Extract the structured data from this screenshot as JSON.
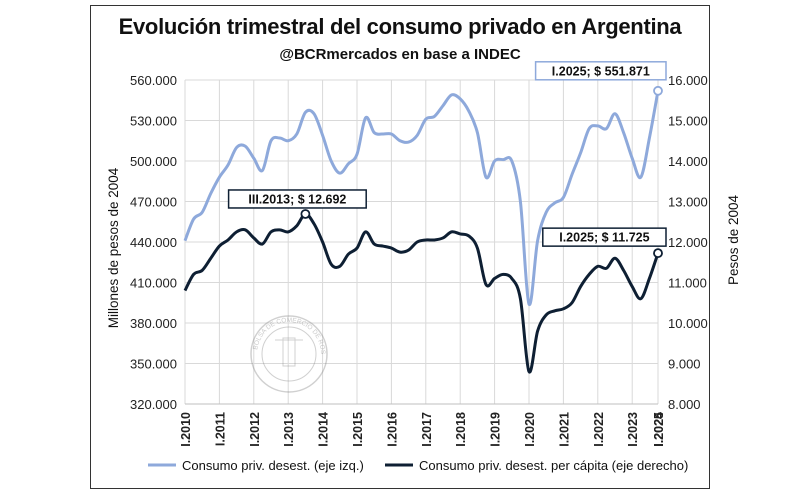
{
  "chart_data": {
    "type": "line",
    "title": "Evolución trimestral del consumo privado en Argentina",
    "subtitle": "@BCRmercados en base a INDEC",
    "ylabel_left": "Millones de pesos de 2004",
    "ylabel_right": "Pesos de 2004",
    "ylim_left": [
      320000,
      560000
    ],
    "ylim_right": [
      8000,
      16000
    ],
    "yticks_left": [
      "560.000",
      "530.000",
      "500.000",
      "470.000",
      "440.000",
      "410.000",
      "380.000",
      "350.000",
      "320.000"
    ],
    "yticks_right": [
      "16.000",
      "15.000",
      "14.000",
      "13.000",
      "12.000",
      "11.000",
      "10.000",
      "9.000",
      "8.000"
    ],
    "x_tick_labels": [
      "I.2010",
      "I.2011",
      "I.2012",
      "I.2013",
      "I.2014",
      "I.2015",
      "I.2016",
      "I.2017",
      "I.2018",
      "I.2019",
      "I.2020",
      "I.2021",
      "I.2022",
      "I.2023",
      "I.2024",
      "I.2025"
    ],
    "grid": true,
    "legend_position": "bottom",
    "series": [
      {
        "name": "Consumo priv. desest. (eje izq.)",
        "axis": "left",
        "color": "#8EA9DB",
        "values": [
          441000,
          457000,
          462000,
          476000,
          488000,
          497000,
          510000,
          511000,
          502000,
          493000,
          515000,
          517000,
          515000,
          520000,
          536000,
          535000,
          519000,
          500000,
          491000,
          498000,
          505000,
          532000,
          521000,
          520000,
          520000,
          515000,
          514000,
          519000,
          531000,
          533000,
          541000,
          549000,
          546000,
          537000,
          521000,
          488000,
          500000,
          501000,
          500000,
          470000,
          394000,
          441000,
          462000,
          469000,
          473000,
          490000,
          506000,
          524000,
          526000,
          524000,
          535000,
          521000,
          502000,
          488000,
          517000,
          552000
        ]
      },
      {
        "name": "Consumo priv. desest. per cápita (eje derecho)",
        "axis": "right",
        "color": "#0E1F33",
        "values": [
          10800,
          11200,
          11300,
          11600,
          11900,
          12050,
          12250,
          12300,
          12100,
          11950,
          12250,
          12300,
          12250,
          12400,
          12692,
          12450,
          12000,
          11450,
          11400,
          11700,
          11850,
          12250,
          11950,
          11900,
          11850,
          11750,
          11800,
          12000,
          12050,
          12050,
          12100,
          12250,
          12200,
          12150,
          11850,
          10950,
          11100,
          11200,
          11100,
          10600,
          8800,
          9800,
          10200,
          10300,
          10350,
          10500,
          10900,
          11200,
          11400,
          11350,
          11600,
          11300,
          10900,
          10600,
          11100,
          11725
        ]
      }
    ],
    "annotations": [
      {
        "label": "I.2025; $ 551.871",
        "series": 0,
        "index": 55
      },
      {
        "label": "III.2013; $ 12.692",
        "series": 1,
        "index": 14
      },
      {
        "label": "I.2025; $ 11.725",
        "series": 1,
        "index": 55
      }
    ],
    "watermark_text": "BOLSA DE COMERCIO DE ROSARIO"
  }
}
